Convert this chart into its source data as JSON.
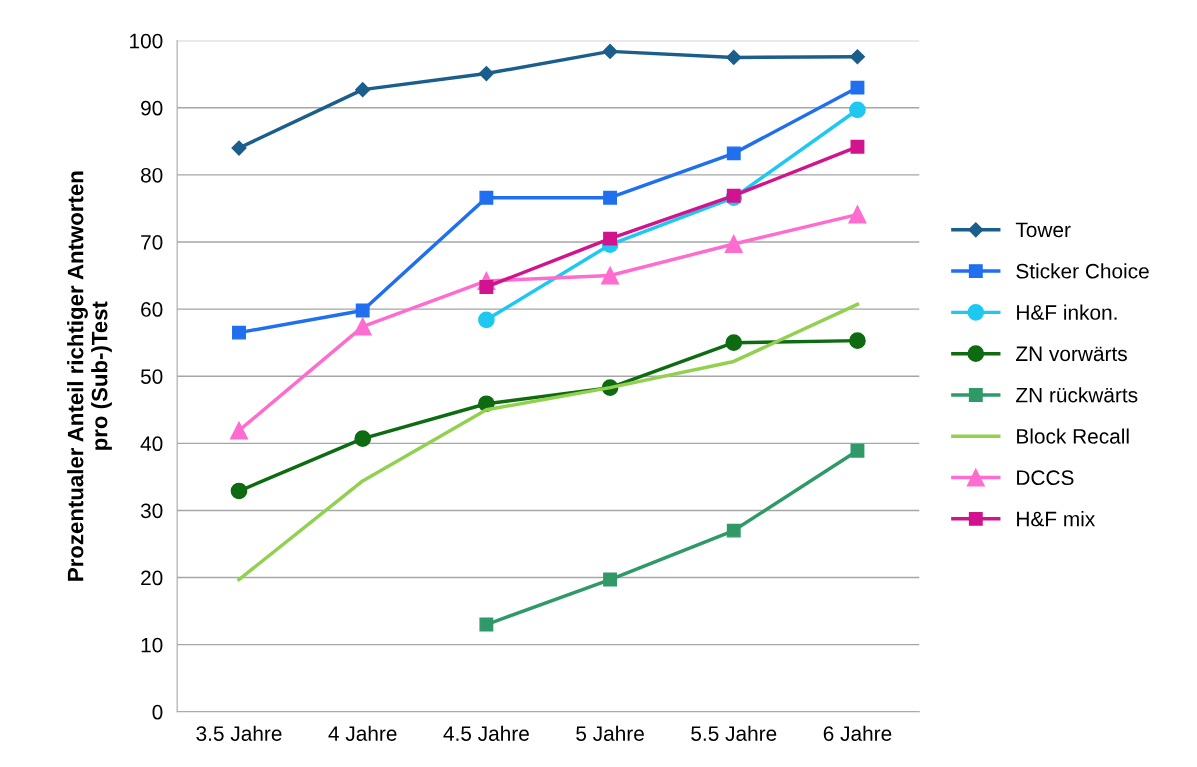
{
  "chart_data": {
    "type": "line",
    "ylabel": "Prozentualer Anteil richtiger Antworten\npro (Sub-)Test",
    "categories": [
      "3.5 Jahre",
      "4 Jahre",
      "4.5 Jahre",
      "5 Jahre",
      "5.5 Jahre",
      "6 Jahre"
    ],
    "ylim": [
      0,
      100
    ],
    "yticks": [
      0,
      10,
      20,
      30,
      40,
      50,
      60,
      70,
      80,
      90,
      100
    ],
    "grid": "y",
    "legend": "right",
    "line_style": "solid",
    "series": [
      {
        "name": "Tower",
        "color": "#1b5e8c",
        "marker": "diamond",
        "values": [
          84.0,
          92.7,
          95.1,
          98.4,
          97.5,
          97.6
        ]
      },
      {
        "name": "Sticker Choice",
        "color": "#1f6fef",
        "marker": "square",
        "values": [
          56.5,
          59.8,
          76.6,
          76.6,
          83.2,
          93.0
        ]
      },
      {
        "name": "H&F inkon.",
        "color": "#1ec8f0",
        "marker": "circle",
        "values": [
          null,
          null,
          58.4,
          69.6,
          76.6,
          89.7
        ]
      },
      {
        "name": "ZN vorwärts",
        "color": "#0e6b12",
        "marker": "circle",
        "values": [
          32.9,
          40.7,
          45.9,
          48.3,
          55.0,
          55.3
        ]
      },
      {
        "name": "ZN rückwärts",
        "color": "#2f9a68",
        "marker": "square",
        "values": [
          null,
          null,
          13.0,
          19.7,
          27.0,
          38.9
        ]
      },
      {
        "name": "Block Recall",
        "color": "#92d050",
        "marker": "none",
        "values": [
          19.7,
          34.4,
          45.0,
          48.3,
          52.2,
          60.7
        ]
      },
      {
        "name": "DCCS",
        "color": "#ff6ccf",
        "marker": "triangle",
        "values": [
          41.9,
          57.4,
          64.2,
          65.0,
          69.7,
          74.1
        ]
      },
      {
        "name": "H&F mix",
        "color": "#d2138e",
        "marker": "square",
        "values": [
          null,
          null,
          63.3,
          70.5,
          76.9,
          84.2
        ]
      }
    ]
  }
}
